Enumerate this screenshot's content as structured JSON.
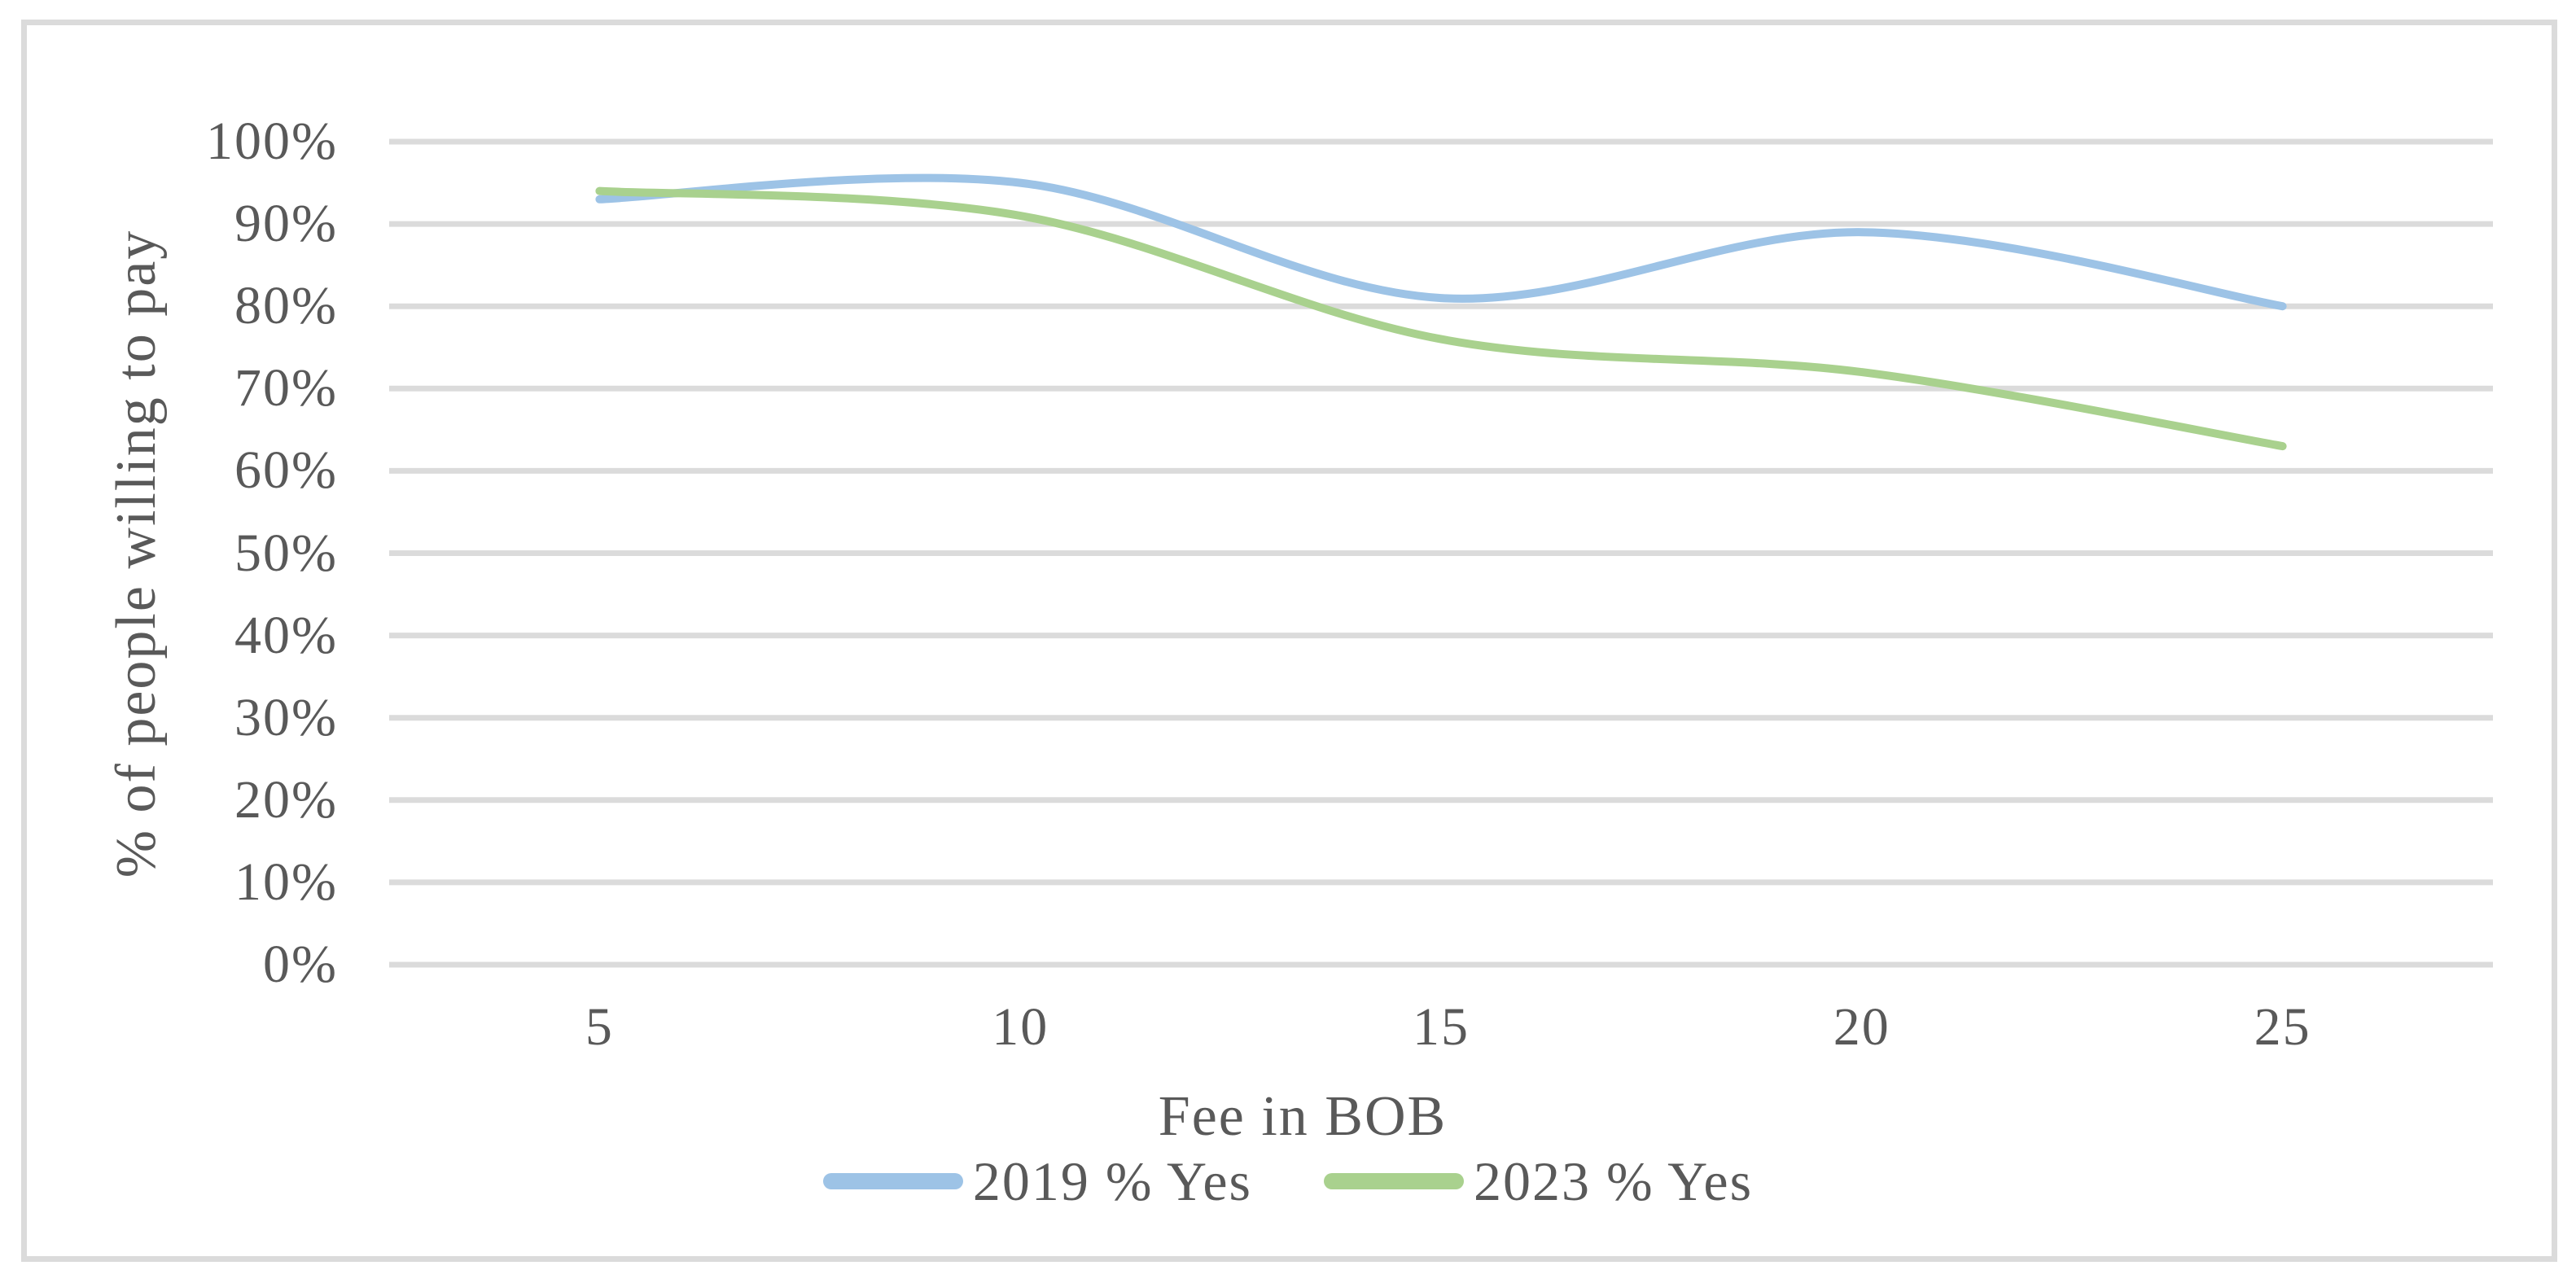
{
  "chart_data": {
    "type": "line",
    "title": "",
    "line_style": "smooth",
    "grid": "horizontal",
    "legend_position": "bottom",
    "x": [
      5,
      10,
      15,
      20,
      25
    ],
    "x_axis": {
      "title": "Fee in BOB",
      "tick_labels": [
        "5",
        "10",
        "15",
        "20",
        "25"
      ]
    },
    "y_axis": {
      "title": "% of people willing to pay",
      "unit": "%",
      "min": 0,
      "max": 100,
      "tick_step": 10,
      "tick_labels": [
        "100%",
        "90%",
        "80%",
        "70%",
        "60%",
        "50%",
        "40%",
        "30%",
        "20%",
        "10%",
        "0%"
      ]
    },
    "series": [
      {
        "name": "2019 % Yes",
        "color": "#9DC3E6",
        "values": [
          93,
          95,
          81,
          89,
          80
        ]
      },
      {
        "name": "2023 % Yes",
        "color": "#A9D18E",
        "values": [
          94,
          91,
          76,
          72,
          63
        ]
      }
    ]
  },
  "colors": {
    "background": "#FFFFFF",
    "chart_border": "#DBDBDB",
    "gridline": "#DBDBDB",
    "text": "#595959"
  }
}
